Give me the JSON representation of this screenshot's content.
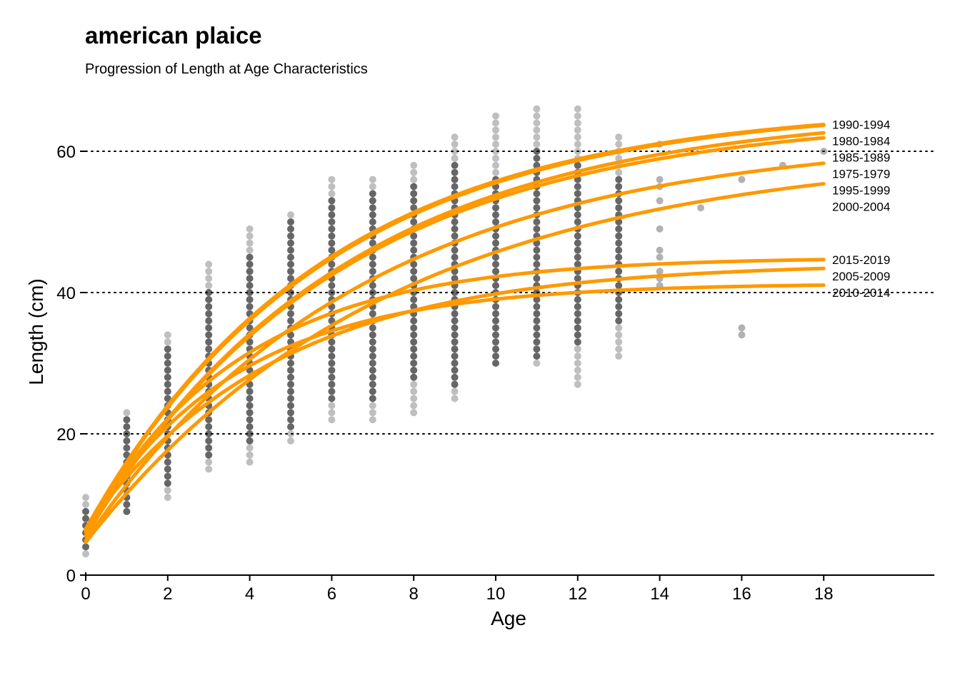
{
  "chart_data": {
    "type": "scatter",
    "title": "american plaice",
    "subtitle": "Progression of Length at Age Characteristics",
    "xlabel": "Age",
    "ylabel": "Length (cm)",
    "xlim": [
      0,
      20.7
    ],
    "ylim": [
      0,
      66
    ],
    "xticks": [
      0,
      2,
      4,
      6,
      8,
      10,
      12,
      14,
      16,
      18
    ],
    "yticks": [
      0,
      20,
      40,
      60
    ],
    "grid": "horizontal dotted",
    "colors": {
      "curve": "#FF9900",
      "point": "#000000",
      "grid": "#000000"
    },
    "point_ranges": [
      {
        "age": 0,
        "min": 3,
        "max": 11,
        "dense_min": 4,
        "dense_max": 9
      },
      {
        "age": 1,
        "min": 9,
        "max": 23,
        "dense_min": 9,
        "dense_max": 22
      },
      {
        "age": 2,
        "min": 11,
        "max": 34,
        "dense_min": 13,
        "dense_max": 32
      },
      {
        "age": 3,
        "min": 15,
        "max": 44,
        "dense_min": 17,
        "dense_max": 40
      },
      {
        "age": 4,
        "min": 16,
        "max": 49,
        "dense_min": 19,
        "dense_max": 45
      },
      {
        "age": 5,
        "min": 19,
        "max": 51,
        "dense_min": 21,
        "dense_max": 50
      },
      {
        "age": 6,
        "min": 22,
        "max": 56,
        "dense_min": 25,
        "dense_max": 53
      },
      {
        "age": 7,
        "min": 22,
        "max": 56,
        "dense_min": 25,
        "dense_max": 54
      },
      {
        "age": 8,
        "min": 23,
        "max": 58,
        "dense_min": 28,
        "dense_max": 55
      },
      {
        "age": 9,
        "min": 25,
        "max": 62,
        "dense_min": 27,
        "dense_max": 58
      },
      {
        "age": 10,
        "min": 30,
        "max": 65,
        "dense_min": 30,
        "dense_max": 56
      },
      {
        "age": 11,
        "min": 30,
        "max": 66,
        "dense_min": 31,
        "dense_max": 60
      },
      {
        "age": 12,
        "min": 27,
        "max": 66,
        "dense_min": 33,
        "dense_max": 58
      },
      {
        "age": 13,
        "min": 31,
        "max": 62,
        "dense_min": 36,
        "dense_max": 56
      }
    ],
    "extra_points": [
      {
        "x": 14,
        "y": 61
      },
      {
        "x": 14,
        "y": 56
      },
      {
        "x": 14,
        "y": 55
      },
      {
        "x": 14,
        "y": 53
      },
      {
        "x": 14,
        "y": 49
      },
      {
        "x": 14,
        "y": 46
      },
      {
        "x": 14,
        "y": 45
      },
      {
        "x": 14,
        "y": 43
      },
      {
        "x": 14,
        "y": 42
      },
      {
        "x": 14,
        "y": 41
      },
      {
        "x": 15,
        "y": 52
      },
      {
        "x": 16,
        "y": 56
      },
      {
        "x": 16,
        "y": 35
      },
      {
        "x": 16,
        "y": 34
      },
      {
        "x": 17,
        "y": 58
      },
      {
        "x": 18,
        "y": 60
      }
    ],
    "series": [
      {
        "name": "1990-1994",
        "linf": 66.5,
        "k": 0.172,
        "t0": -0.6
      },
      {
        "name": "1980-1984",
        "linf": 66.5,
        "k": 0.17,
        "t0": -0.6
      },
      {
        "name": "1985-1989",
        "linf": 66.0,
        "k": 0.16,
        "t0": -0.55
      },
      {
        "name": "1975-1979",
        "linf": 65.2,
        "k": 0.161,
        "t0": -0.55
      },
      {
        "name": "1995-1999",
        "linf": 62.3,
        "k": 0.148,
        "t0": -0.55
      },
      {
        "name": "2000-2004",
        "linf": 60.5,
        "k": 0.133,
        "t0": -0.6
      },
      {
        "name": "2015-2019",
        "linf": 45.0,
        "k": 0.265,
        "t0": -0.55
      },
      {
        "name": "2005-2009",
        "linf": 44.2,
        "k": 0.215,
        "t0": -0.75
      },
      {
        "name": "2010-2014",
        "linf": 41.3,
        "k": 0.275,
        "t0": -0.6
      }
    ]
  }
}
